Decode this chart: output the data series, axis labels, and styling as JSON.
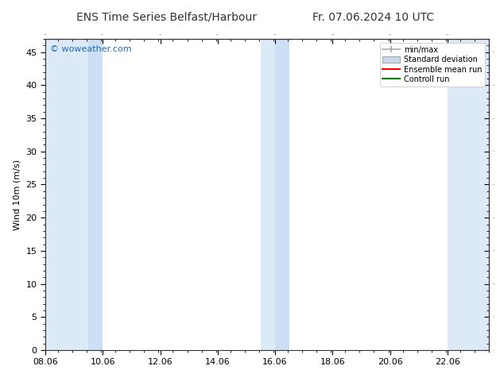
{
  "title_left": "ENS Time Series Belfast/Harbour",
  "title_right": "Fr. 07.06.2024 10 UTC",
  "ylabel": "Wind 10m (m/s)",
  "watermark": "© woweather.com",
  "xlim": [
    8.06,
    23.5
  ],
  "ylim": [
    0,
    47
  ],
  "yticks": [
    0,
    5,
    10,
    15,
    20,
    25,
    30,
    35,
    40,
    45
  ],
  "xtick_labels": [
    "08.06",
    "10.06",
    "12.06",
    "14.06",
    "16.06",
    "18.06",
    "20.06",
    "22.06"
  ],
  "xtick_positions": [
    8.06,
    10.06,
    12.06,
    14.06,
    16.06,
    18.06,
    20.06,
    22.06
  ],
  "background_color": "#ffffff",
  "plot_bg_color": "#ffffff",
  "shaded_bands": [
    {
      "x_start": 8.06,
      "x_end": 9.56,
      "color": "#dce9f7"
    },
    {
      "x_start": 9.56,
      "x_end": 10.06,
      "color": "#ccdff5"
    },
    {
      "x_start": 15.56,
      "x_end": 16.06,
      "color": "#dce9f7"
    },
    {
      "x_start": 16.06,
      "x_end": 16.56,
      "color": "#ccdff5"
    },
    {
      "x_start": 22.06,
      "x_end": 23.5,
      "color": "#dce9f7"
    }
  ],
  "legend_entries": [
    {
      "label": "min/max",
      "color": "#aaaaaa",
      "type": "errorbar"
    },
    {
      "label": "Standard deviation",
      "color": "#c8d8ea",
      "type": "box"
    },
    {
      "label": "Ensemble mean run",
      "color": "#ff0000",
      "type": "line"
    },
    {
      "label": "Controll run",
      "color": "#008000",
      "type": "line"
    }
  ],
  "title_fontsize": 10,
  "label_fontsize": 8,
  "tick_fontsize": 8,
  "watermark_color": "#1e6bb8",
  "watermark_fontsize": 8,
  "legend_fontsize": 7
}
